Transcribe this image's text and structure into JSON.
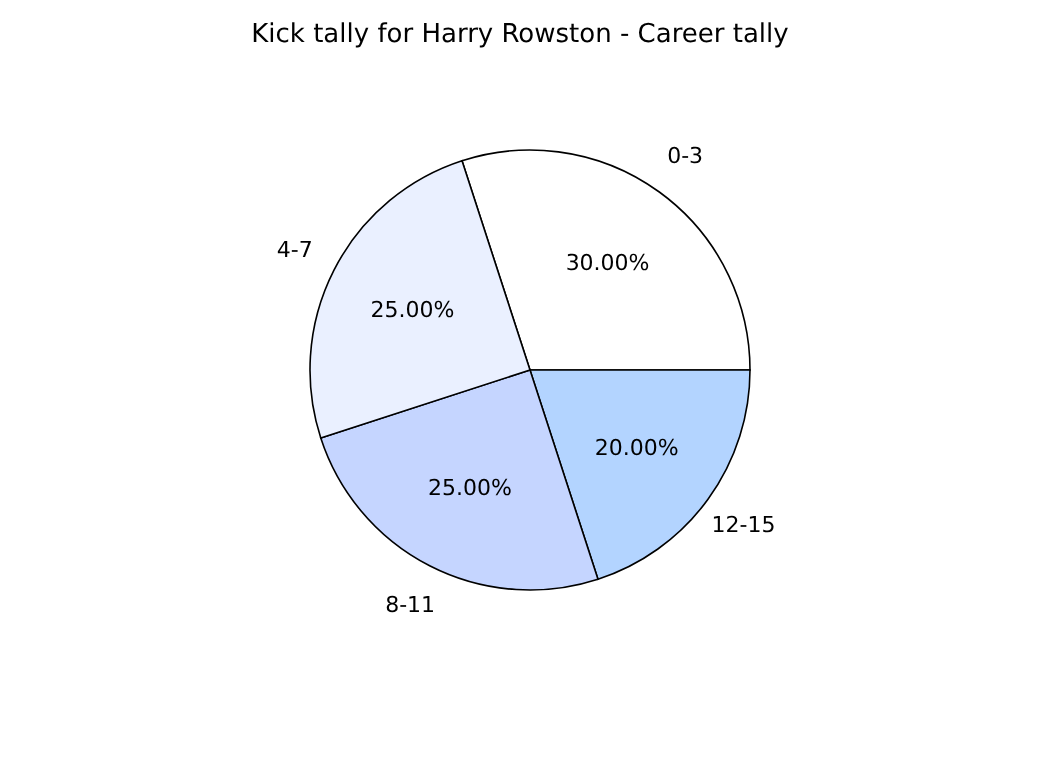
{
  "chart_data": {
    "type": "pie",
    "title": "Kick tally for Harry Rowston - Career tally",
    "categories": [
      "0-3",
      "12-15",
      "8-11",
      "4-7"
    ],
    "values": [
      30,
      20,
      25,
      25
    ],
    "colors": [
      "#ffffff",
      "#b3d4ff",
      "#c5d5ff",
      "#eaf0ff"
    ],
    "value_labels": [
      "30.00%",
      "20.00%",
      "25.00%",
      "25.00%"
    ],
    "legend": false
  }
}
